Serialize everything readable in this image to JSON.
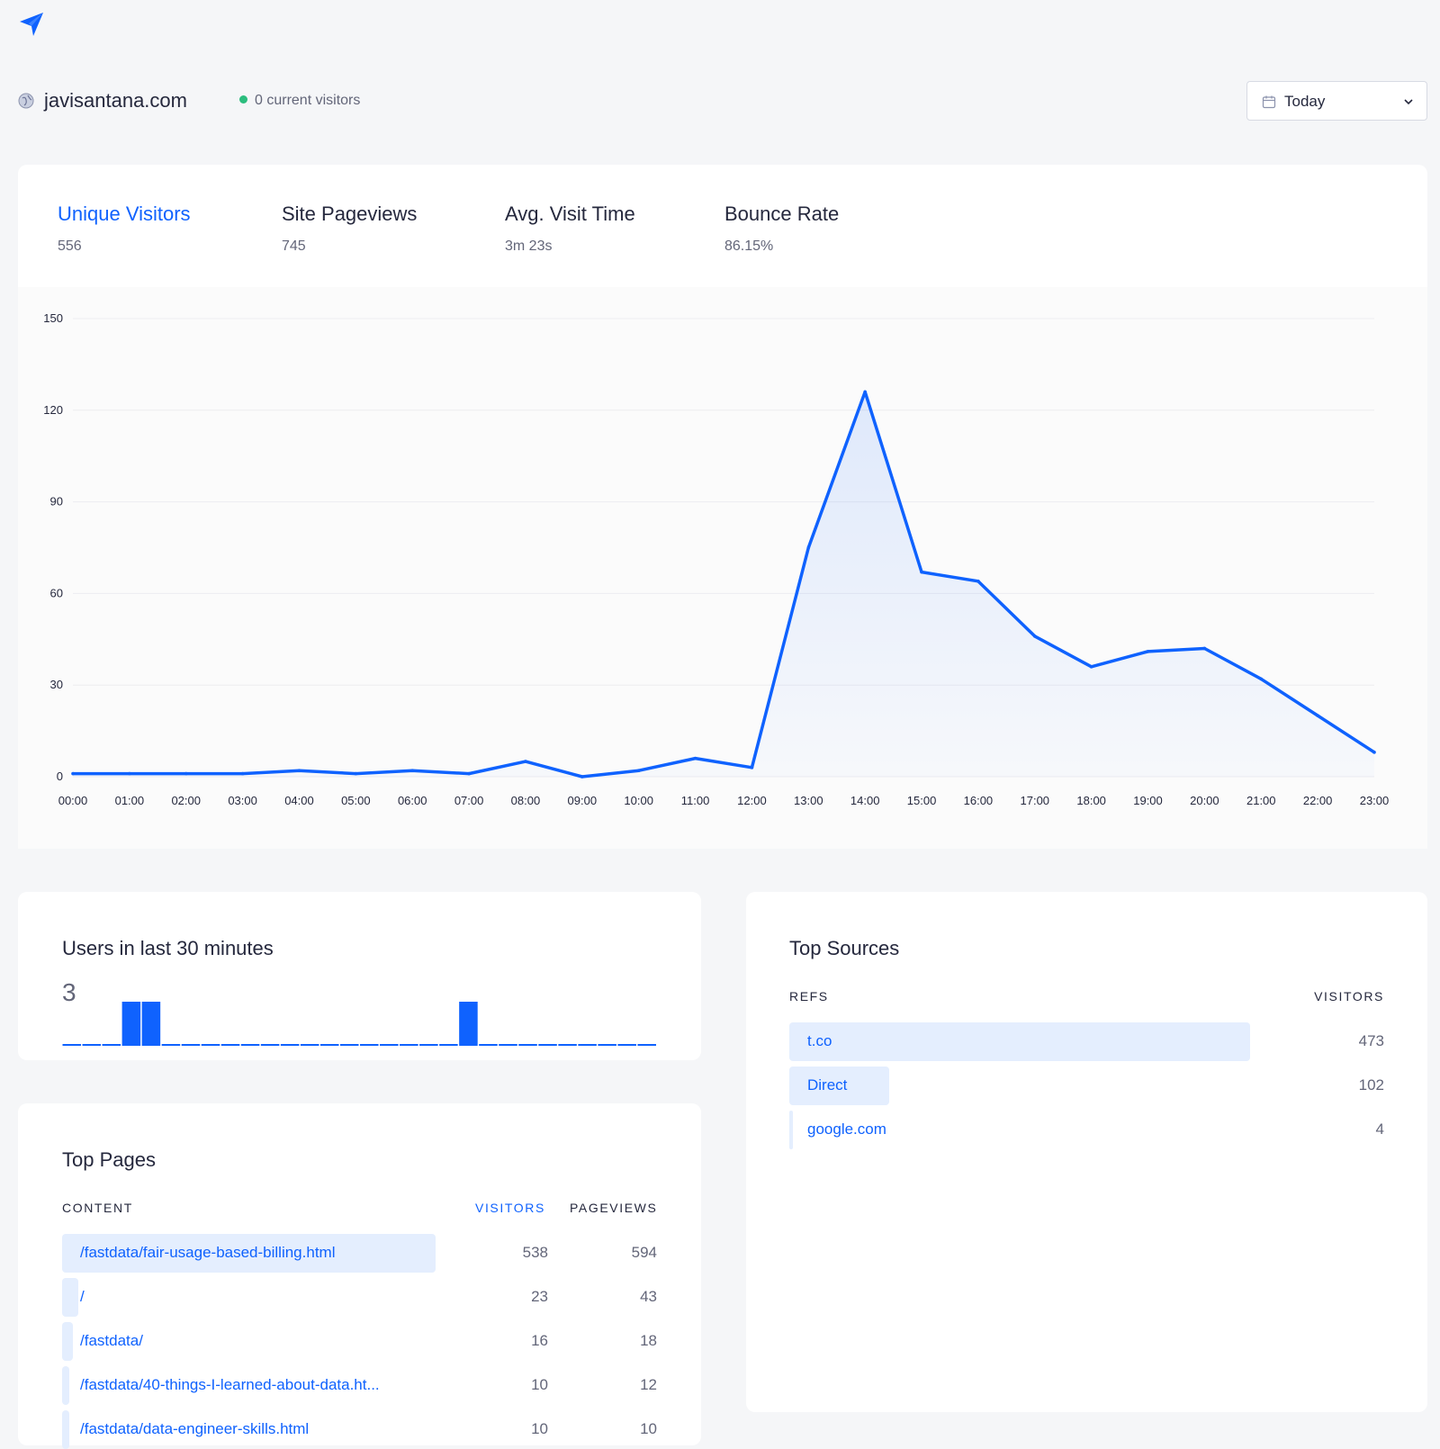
{
  "site": {
    "domain": "javisantana.com",
    "live_visitors": "0 current visitors"
  },
  "date_picker": {
    "label": "Today"
  },
  "kpis": [
    {
      "label": "Unique Visitors",
      "value": "556"
    },
    {
      "label": "Site Pageviews",
      "value": "745"
    },
    {
      "label": "Avg. Visit Time",
      "value": "3m 23s"
    },
    {
      "label": "Bounce Rate",
      "value": "86.15%"
    }
  ],
  "chart_data": {
    "type": "area",
    "x": [
      "00:00",
      "01:00",
      "02:00",
      "03:00",
      "04:00",
      "05:00",
      "06:00",
      "07:00",
      "08:00",
      "09:00",
      "10:00",
      "11:00",
      "12:00",
      "13:00",
      "14:00",
      "15:00",
      "16:00",
      "17:00",
      "18:00",
      "19:00",
      "20:00",
      "21:00",
      "22:00",
      "23:00"
    ],
    "series": [
      {
        "values": [
          1,
          1,
          1,
          1,
          2,
          1,
          2,
          1,
          5,
          0,
          2,
          6,
          3,
          75,
          126,
          67,
          64,
          46,
          36,
          41,
          42,
          32,
          20,
          8
        ]
      }
    ],
    "yticks": [
      0,
      30,
      60,
      90,
      120,
      150
    ],
    "ylim": [
      0,
      150
    ],
    "color": "#0f62fe",
    "grid": true
  },
  "users_last_30": {
    "title": "Users in last 30 minutes",
    "count": "3",
    "bars": [
      0,
      0,
      0,
      1,
      1,
      0,
      0,
      0,
      0,
      0,
      0,
      0,
      0,
      0,
      0,
      0,
      0,
      0,
      0,
      0,
      1,
      0,
      0,
      0,
      0,
      0,
      0,
      0,
      0,
      0
    ]
  },
  "top_pages": {
    "title": "Top Pages",
    "headers": {
      "content": "CONTENT",
      "visitors": "VISITORS",
      "pageviews": "PAGEVIEWS"
    },
    "rows": [
      {
        "path": "/fastdata/fair-usage-based-billing.html",
        "visitors": "538",
        "pageviews": "594",
        "share": 1.0
      },
      {
        "path": "/",
        "visitors": "23",
        "pageviews": "43",
        "share": 0.043
      },
      {
        "path": "/fastdata/",
        "visitors": "16",
        "pageviews": "18",
        "share": 0.03
      },
      {
        "path": "/fastdata/40-things-I-learned-about-data.ht...",
        "visitors": "10",
        "pageviews": "12",
        "share": 0.019
      },
      {
        "path": "/fastdata/data-engineer-skills.html",
        "visitors": "10",
        "pageviews": "10",
        "share": 0.019
      }
    ]
  },
  "top_sources": {
    "title": "Top Sources",
    "headers": {
      "refs": "REFS",
      "visitors": "VISITORS"
    },
    "rows": [
      {
        "ref": "t.co",
        "visitors": "473",
        "share": 1.0
      },
      {
        "ref": "Direct",
        "visitors": "102",
        "share": 0.216
      },
      {
        "ref": "google.com",
        "visitors": "4",
        "share": 0.0085
      }
    ]
  }
}
